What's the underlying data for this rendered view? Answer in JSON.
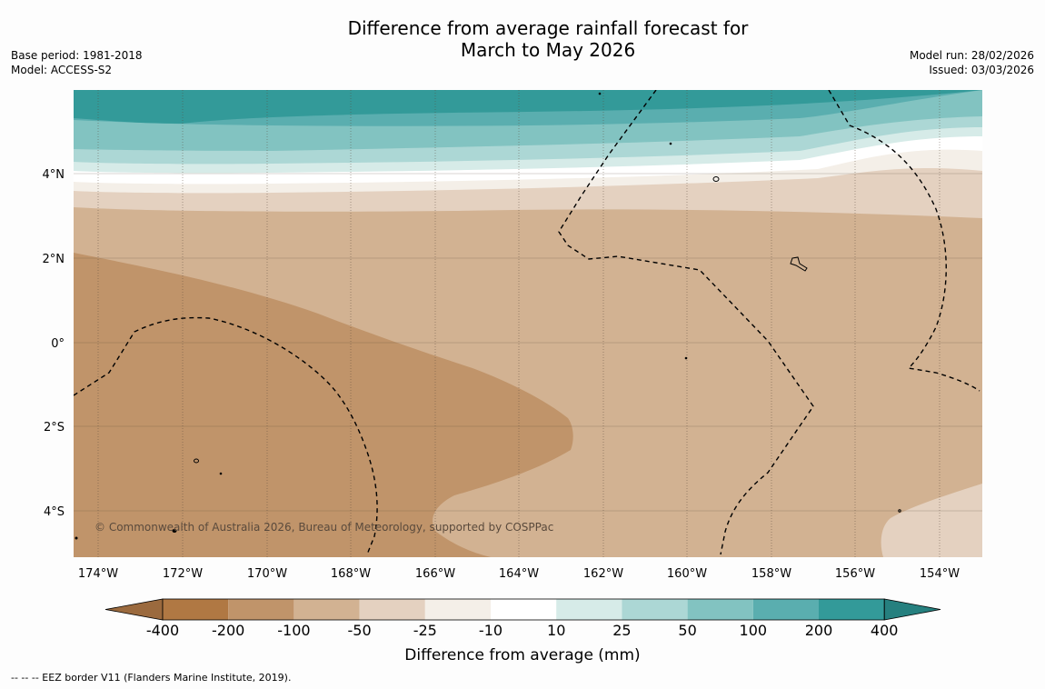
{
  "title": {
    "line1": "Difference from average rainfall forecast for",
    "line2": "March to May 2026"
  },
  "meta_left": {
    "base_period": "Base period: 1981-2018",
    "model": "Model: ACCESS-S2"
  },
  "meta_right": {
    "model_run": "Model run: 28/02/2026",
    "issued": "Issued: 03/03/2026"
  },
  "map": {
    "lat_labels": [
      "4°N",
      "2°N",
      "0°",
      "2°S",
      "4°S"
    ],
    "lon_labels": [
      "174°W",
      "172°W",
      "170°W",
      "168°W",
      "166°W",
      "164°W",
      "162°W",
      "160°W",
      "158°W",
      "156°W",
      "154°W"
    ],
    "copyright": "© Commonwealth of Australia 2026, Bureau of Meteorology, supported by COSPPac"
  },
  "colorbar": {
    "boundaries": [
      "-400",
      "-200",
      "-100",
      "-50",
      "-25",
      "-10",
      "10",
      "25",
      "50",
      "100",
      "200",
      "400"
    ],
    "colors": [
      "#9b6a3e",
      "#b07843",
      "#c0946a",
      "#d2b292",
      "#e4d1c0",
      "#f4efe8",
      "#ffffff",
      "#d6ebe8",
      "#acd7d5",
      "#82c3c1",
      "#5aaeaf",
      "#339a99",
      "#26807f"
    ],
    "title": "Difference from average (mm)"
  },
  "colors": {
    "dry_strong": "#c0946a",
    "dry_moderate": "#d2b292",
    "dry_light": "#e4d1c0",
    "near_normal": "#f4efe8",
    "wet_light": "#d6ebe8",
    "wet_moderate": "#acd7d5",
    "wet_strong": "#5aaeaf",
    "wet_very_strong": "#339a99"
  },
  "footnote": "--  --  -- EEZ border V11 (Flanders Marine Institute, 2019)."
}
